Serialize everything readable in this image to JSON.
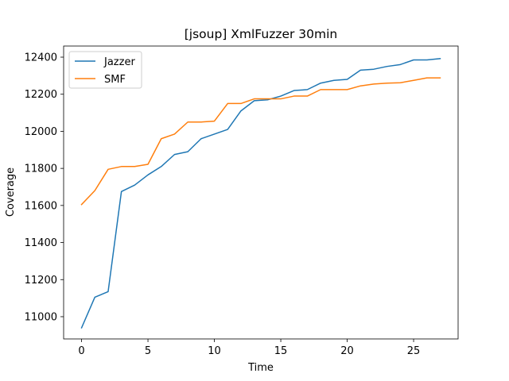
{
  "chart_data": {
    "type": "line",
    "title": "[jsoup] XmlFuzzer 30min",
    "xlabel": "Time",
    "ylabel": "Coverage",
    "xlim": [
      -1.35,
      28.35
    ],
    "ylim": [
      10880,
      12460
    ],
    "xticks": [
      0,
      5,
      10,
      15,
      20,
      25
    ],
    "yticks": [
      11000,
      11200,
      11400,
      11600,
      11800,
      12000,
      12200,
      12400
    ],
    "grid": false,
    "legend_position": "top-left",
    "x": [
      0,
      1,
      2,
      3,
      4,
      5,
      6,
      7,
      8,
      9,
      10,
      11,
      12,
      13,
      14,
      15,
      16,
      17,
      18,
      19,
      20,
      21,
      22,
      23,
      24,
      25,
      26,
      27
    ],
    "series": [
      {
        "name": "Jazzer",
        "color": "#1f77b4",
        "values": [
          10940,
          11105,
          11135,
          11675,
          11710,
          11765,
          11810,
          11875,
          11890,
          11960,
          11985,
          12010,
          12110,
          12165,
          12170,
          12190,
          12220,
          12225,
          12260,
          12275,
          12280,
          12330,
          12335,
          12350,
          12360,
          12385,
          12385,
          12392
        ]
      },
      {
        "name": "SMF",
        "color": "#ff7f0e",
        "values": [
          11605,
          11680,
          11795,
          11810,
          11810,
          11822,
          11960,
          11985,
          12050,
          12050,
          12055,
          12150,
          12150,
          12175,
          12175,
          12175,
          12190,
          12190,
          12225,
          12225,
          12225,
          12245,
          12255,
          12260,
          12262,
          12275,
          12288,
          12288
        ]
      }
    ]
  }
}
